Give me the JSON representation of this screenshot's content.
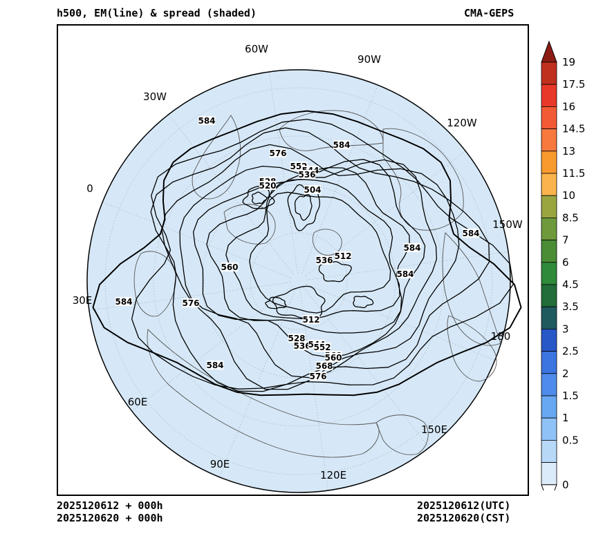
{
  "header": {
    "title_left": "h500, EM(line) & spread (shaded)",
    "title_right": "CMA-GEPS"
  },
  "footer": {
    "init_left": "2025120612 + 000h",
    "valid_left": "2025120620 + 000h",
    "init_right": "2025120612(UTC)",
    "valid_right": "2025120620(CST)"
  },
  "map": {
    "projection": "north-polar-stereographic",
    "longitude_labels": [
      {
        "text": "60W",
        "lon": -60
      },
      {
        "text": "90W",
        "lon": -90
      },
      {
        "text": "30W",
        "lon": -30
      },
      {
        "text": "120W",
        "lon": -120
      },
      {
        "text": "0",
        "lon": 0
      },
      {
        "text": "150W",
        "lon": -150
      },
      {
        "text": "30E",
        "lon": 30
      },
      {
        "text": "180",
        "lon": 180
      },
      {
        "text": "60E",
        "lon": 60
      },
      {
        "text": "150E",
        "lon": 150
      },
      {
        "text": "90E",
        "lon": 90
      },
      {
        "text": "120E",
        "lon": 120
      }
    ],
    "contour_labels": [
      "584",
      "584",
      "576",
      "560",
      "552",
      "544",
      "536",
      "528",
      "504",
      "520",
      "512",
      "536",
      "584",
      "584",
      "560",
      "576",
      "584",
      "512",
      "528",
      "536",
      "544",
      "552",
      "560",
      "568",
      "576",
      "584",
      "584"
    ],
    "colors": {
      "ocean": "#d6e8f7",
      "contour": "#000000",
      "coastline": "#555555"
    }
  },
  "colorbar": {
    "labels": [
      "19",
      "17.5",
      "16",
      "14.5",
      "13",
      "11.5",
      "10",
      "8.5",
      "7",
      "6",
      "4.5",
      "3.5",
      "3",
      "2.5",
      "2",
      "1.5",
      "1",
      "0.5",
      "0"
    ],
    "colors": [
      "#c0301e",
      "#e8382a",
      "#f25a35",
      "#f7793e",
      "#f99a2f",
      "#fbb34d",
      "#9aa540",
      "#6e9a3c",
      "#4a8d35",
      "#2f8a3a",
      "#226d38",
      "#1f5a5e",
      "#2858c8",
      "#3c74e0",
      "#4f8bea",
      "#68a7f2",
      "#8fc2f7",
      "#b8d8f8",
      "#dcebfa"
    ]
  }
}
